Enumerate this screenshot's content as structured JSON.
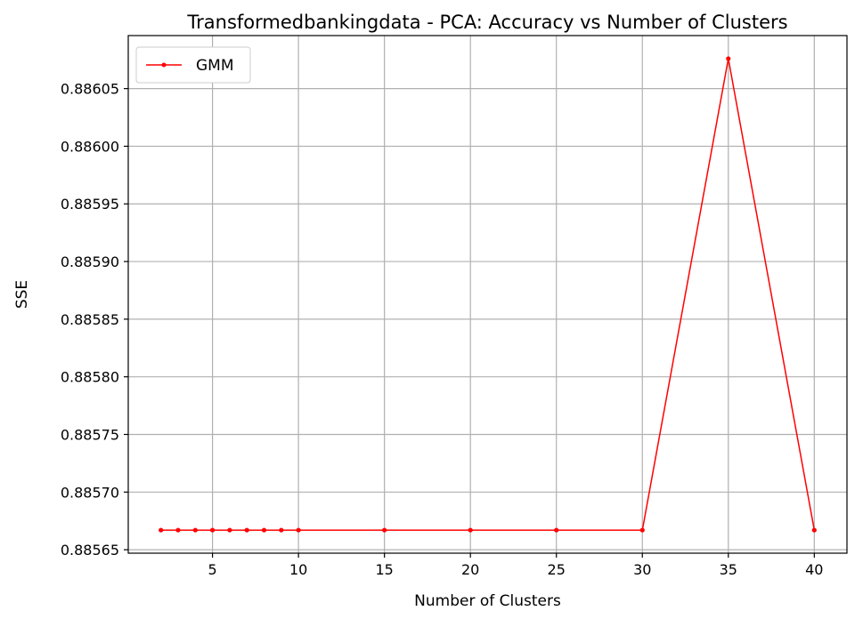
{
  "chart_data": {
    "type": "line",
    "title": "Transformedbankingdata - PCA: Accuracy vs Number of Clusters",
    "xlabel": "Number of Clusters",
    "ylabel": "SSE",
    "x": [
      2,
      3,
      4,
      5,
      6,
      7,
      8,
      9,
      10,
      15,
      20,
      25,
      30,
      35,
      40
    ],
    "series": [
      {
        "name": "GMM",
        "color": "#ff0000",
        "marker": "dot",
        "values": [
          0.885667,
          0.885667,
          0.885667,
          0.885667,
          0.885667,
          0.885667,
          0.885667,
          0.885667,
          0.885667,
          0.885667,
          0.885667,
          0.885667,
          0.885667,
          0.886076,
          0.885667
        ]
      }
    ],
    "xlim": [
      0.1,
      41.9
    ],
    "ylim": [
      0.885647,
      0.886096
    ],
    "xticks": [
      5,
      10,
      15,
      20,
      25,
      30,
      35,
      40
    ],
    "xtick_labels": [
      "5",
      "10",
      "15",
      "20",
      "25",
      "30",
      "35",
      "40"
    ],
    "yticks": [
      0.88565,
      0.8857,
      0.88575,
      0.8858,
      0.88585,
      0.8859,
      0.88595,
      0.886,
      0.88605
    ],
    "ytick_labels": [
      "0.88565",
      "0.88570",
      "0.88575",
      "0.88580",
      "0.88585",
      "0.88590",
      "0.88595",
      "0.88600",
      "0.88605"
    ],
    "grid": true,
    "legend_position": "top-left"
  }
}
